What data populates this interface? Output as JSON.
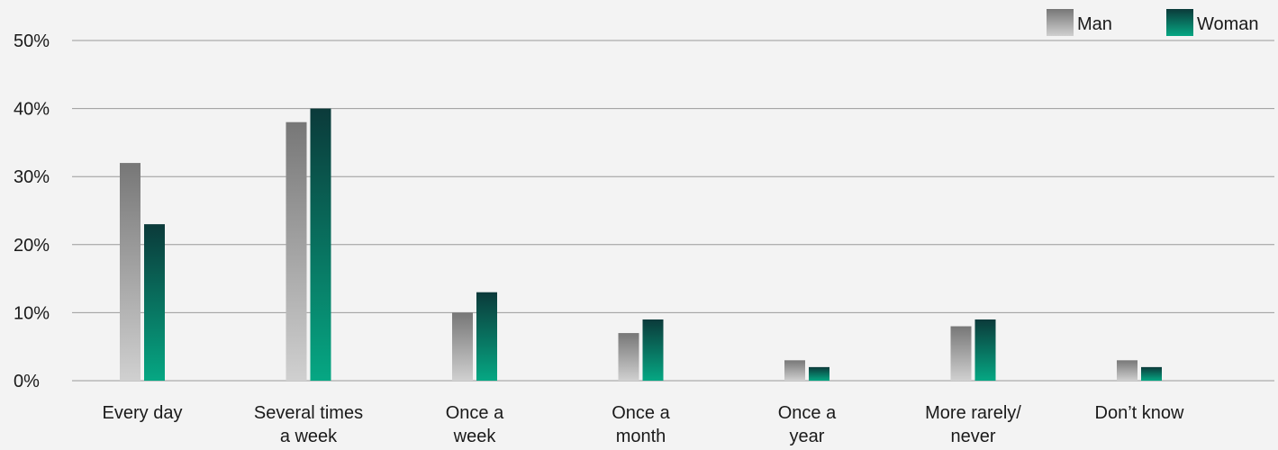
{
  "chart_data": {
    "type": "bar",
    "categories": [
      [
        "Every day"
      ],
      [
        "Several times",
        "a week"
      ],
      [
        "Once a",
        "week"
      ],
      [
        "Once a",
        "month"
      ],
      [
        "Once a",
        "year"
      ],
      [
        "More rarely/",
        "never"
      ],
      [
        "Don’t know"
      ]
    ],
    "series": [
      {
        "name": "Man",
        "values": [
          32,
          38,
          10,
          7,
          3,
          8,
          3
        ]
      },
      {
        "name": "Woman",
        "values": [
          23,
          40,
          13,
          9,
          2,
          9,
          2
        ]
      }
    ],
    "ylim": [
      0,
      50
    ],
    "yticks": [
      "0%",
      "10%",
      "20%",
      "30%",
      "40%",
      "50%"
    ],
    "grid": true,
    "legend_position": "top-right",
    "colors": {
      "Man": {
        "top": "#777777",
        "bottom": "#d0d0d0"
      },
      "Woman": {
        "top": "#0b3a3a",
        "bottom": "#06a783"
      }
    }
  }
}
